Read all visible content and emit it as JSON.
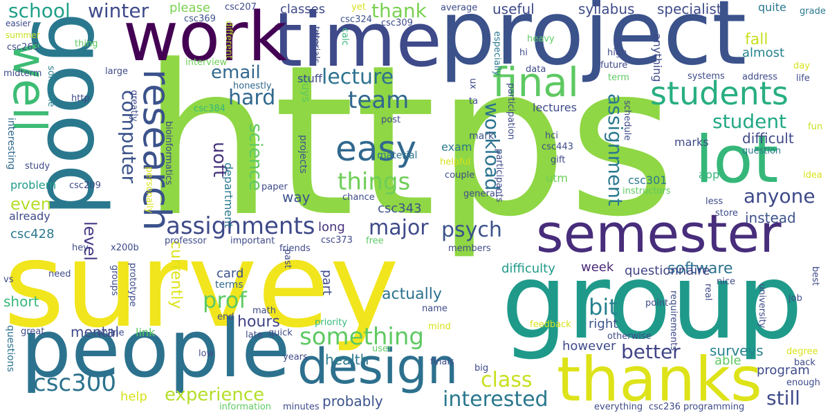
{
  "words": [
    {
      "text": "https",
      "color": "#8fd744"
    },
    {
      "text": "survey",
      "color": "#f1e51d"
    },
    {
      "text": "group",
      "color": "#1f9a8a"
    },
    {
      "text": "project",
      "color": "#3b528b"
    },
    {
      "text": "time",
      "color": "#3e4a89"
    },
    {
      "text": "people",
      "color": "#2c728e"
    },
    {
      "text": "work",
      "color": "#440154"
    },
    {
      "text": "good",
      "color": "#2a788e"
    },
    {
      "text": "thanks",
      "color": "#dde318"
    },
    {
      "text": "semester",
      "color": "#472d7b"
    },
    {
      "text": "design",
      "color": "#2d708e"
    },
    {
      "text": "well",
      "color": "#3dbc74"
    },
    {
      "text": "lot",
      "color": "#35b779"
    },
    {
      "text": "students",
      "color": "#28ae80"
    },
    {
      "text": "research",
      "color": "#3b528b"
    },
    {
      "text": "final",
      "color": "#5ec962"
    },
    {
      "text": "easy",
      "color": "#31688e"
    },
    {
      "text": "csc300",
      "color": "#2c728e"
    },
    {
      "text": "assignments",
      "color": "#3e4a89"
    },
    {
      "text": "something",
      "color": "#5ec962"
    },
    {
      "text": "things",
      "color": "#6ece58"
    },
    {
      "text": "experience",
      "color": "#b5de2b"
    },
    {
      "text": "interested",
      "color": "#2a788e"
    },
    {
      "text": "psych",
      "color": "#3b528b"
    },
    {
      "text": "major",
      "color": "#3e4a89"
    },
    {
      "text": "team",
      "color": "#31688e"
    },
    {
      "text": "lecture",
      "color": "#2c728e"
    },
    {
      "text": "hard",
      "color": "#31688e"
    },
    {
      "text": "class",
      "color": "#c8e020"
    },
    {
      "text": "prof",
      "color": "#5ec962"
    },
    {
      "text": "bit",
      "color": "#26828e"
    },
    {
      "text": "better",
      "color": "#414487"
    },
    {
      "text": "still",
      "color": "#3e4a89"
    },
    {
      "text": "anyone",
      "color": "#3e4a89"
    },
    {
      "text": "student",
      "color": "#22a884"
    },
    {
      "text": "workload",
      "color": "#2c728e"
    },
    {
      "text": "assignment",
      "color": "#2a788e"
    },
    {
      "text": "computer",
      "color": "#3b528b"
    },
    {
      "text": "uoft",
      "color": "#46327e"
    },
    {
      "text": "science",
      "color": "#5ec962"
    },
    {
      "text": "email",
      "color": "#31688e"
    },
    {
      "text": "school",
      "color": "#1fa088"
    },
    {
      "text": "winter",
      "color": "#3e4a89"
    },
    {
      "text": "thank",
      "color": "#7ad151"
    },
    {
      "text": "level",
      "color": "#443983"
    },
    {
      "text": "even",
      "color": "#b5de2b"
    },
    {
      "text": "hours",
      "color": "#414487"
    },
    {
      "text": "health",
      "color": "#2a788e"
    },
    {
      "text": "software",
      "color": "#2c728e"
    },
    {
      "text": "actually",
      "color": "#2c728e"
    },
    {
      "text": "probably",
      "color": "#3b528b"
    },
    {
      "text": "currently",
      "color": "#dde318"
    },
    {
      "text": "short",
      "color": "#35b779"
    },
    {
      "text": "mental",
      "color": "#3e4a89"
    },
    {
      "text": "surveys",
      "color": "#26828e"
    },
    {
      "text": "program",
      "color": "#3e4a89"
    },
    {
      "text": "help",
      "color": "#d8e219"
    },
    {
      "text": "difficulty",
      "color": "#1f9a8a"
    },
    {
      "text": "questionnaire",
      "color": "#414487"
    },
    {
      "text": "week",
      "color": "#482878"
    },
    {
      "text": "right",
      "color": "#3b528b"
    },
    {
      "text": "however",
      "color": "#3e4a89"
    },
    {
      "text": "able",
      "color": "#5ec962"
    },
    {
      "text": "instead",
      "color": "#3b528b"
    },
    {
      "text": "difficult",
      "color": "#3e4a89"
    },
    {
      "text": "fall",
      "color": "#c8e020"
    },
    {
      "text": "almost",
      "color": "#26828e"
    },
    {
      "text": "specialist",
      "color": "#3e4a89"
    },
    {
      "text": "syllabus",
      "color": "#3e4a89"
    },
    {
      "text": "useful",
      "color": "#3e4a89"
    },
    {
      "text": "classes",
      "color": "#3e4a89"
    },
    {
      "text": "please",
      "color": "#7ad151"
    },
    {
      "text": "way",
      "color": "#3b528b"
    },
    {
      "text": "card",
      "color": "#3b528b"
    },
    {
      "text": "long",
      "color": "#46327e"
    },
    {
      "text": "part",
      "color": "#3e4a89"
    },
    {
      "text": "terms",
      "color": "#31688e"
    },
    {
      "text": "exam",
      "color": "#2a788e"
    },
    {
      "text": "mark",
      "color": "#3b528b"
    },
    {
      "text": "marks",
      "color": "#3e4a89"
    },
    {
      "text": "lectures",
      "color": "#3e4a89"
    },
    {
      "text": "utm",
      "color": "#6ece58"
    },
    {
      "text": "problem",
      "color": "#1f9a8a"
    },
    {
      "text": "csc428",
      "color": "#2a788e"
    },
    {
      "text": "already",
      "color": "#3e4a89"
    },
    {
      "text": "department",
      "color": "#2a788e"
    },
    {
      "text": "csc343",
      "color": "#3b528b"
    },
    {
      "text": "csc301",
      "color": "#2a788e"
    },
    {
      "text": "anything",
      "color": "#3e4a89"
    },
    {
      "text": "link",
      "color": "#5ec962"
    },
    {
      "text": "guys",
      "color": "#5ec962"
    },
    {
      "text": "stuff",
      "color": "#3e4a89"
    },
    {
      "text": "material",
      "color": "#2c728e"
    },
    {
      "text": "quite",
      "color": "#2a788e"
    },
    {
      "text": "app",
      "color": "#35b779"
    },
    {
      "text": "interesting",
      "color": "#31688e"
    },
    {
      "text": "questions",
      "color": "#2c728e"
    },
    {
      "text": "projects",
      "color": "#3b528b"
    },
    {
      "text": "yet",
      "color": "#d8e219"
    },
    {
      "text": "average",
      "color": "#3e4a89"
    },
    {
      "text": "grade",
      "color": "#2a788e"
    },
    {
      "text": "csc207",
      "color": "#3e4a89"
    },
    {
      "text": "csc369",
      "color": "#3b528b"
    },
    {
      "text": "csc324",
      "color": "#3b528b"
    },
    {
      "text": "csc309",
      "color": "#3e4a89"
    },
    {
      "text": "csc263",
      "color": "#3e4a89"
    },
    {
      "text": "csc384",
      "color": "#35b779"
    },
    {
      "text": "csc209",
      "color": "#3e4a89"
    },
    {
      "text": "csc373",
      "color": "#3e4a89"
    },
    {
      "text": "csc443",
      "color": "#3e4a89"
    },
    {
      "text": "csc236",
      "color": "#3e4a89"
    },
    {
      "text": "x200b",
      "color": "#3e4a89"
    },
    {
      "text": "easier",
      "color": "#3e4a89"
    },
    {
      "text": "summer",
      "color": "#c8e020"
    },
    {
      "text": "midterm",
      "color": "#3e4a89"
    },
    {
      "text": "someone",
      "color": "#26828e"
    },
    {
      "text": "thing",
      "color": "#5ec962"
    },
    {
      "text": "due",
      "color": "#3e4a89"
    },
    {
      "text": "tutorials",
      "color": "#3e4a89"
    },
    {
      "text": "calc",
      "color": "#35b779"
    },
    {
      "text": "different",
      "color": "#b5de2b"
    },
    {
      "text": "interview",
      "color": "#6ece58"
    },
    {
      "text": "large",
      "color": "#3e4a89"
    },
    {
      "text": "honestly",
      "color": "#31688e"
    },
    {
      "text": "http",
      "color": "#3e4a89"
    },
    {
      "text": "greatly",
      "color": "#3e4a89"
    },
    {
      "text": "bioinformatics",
      "color": "#3e4a89"
    },
    {
      "text": "study",
      "color": "#3e4a89"
    },
    {
      "text": "heavy",
      "color": "#5ec962"
    },
    {
      "text": "hi",
      "color": "#3e4a89"
    },
    {
      "text": "data",
      "color": "#3e4a89"
    },
    {
      "text": "especially",
      "color": "#2a788e"
    },
    {
      "text": "ux",
      "color": "#3e4a89"
    },
    {
      "text": "ta",
      "color": "#3e4a89"
    },
    {
      "text": "participation",
      "color": "#3e4a89"
    },
    {
      "text": "participants",
      "color": "#3e4a89"
    },
    {
      "text": "high",
      "color": "#3e4a89"
    },
    {
      "text": "future",
      "color": "#3e4a89"
    },
    {
      "text": "term",
      "color": "#5ec962"
    },
    {
      "text": "day",
      "color": "#d8e219"
    },
    {
      "text": "systems",
      "color": "#3e4a89"
    },
    {
      "text": "address",
      "color": "#3e4a89"
    },
    {
      "text": "life",
      "color": "#3e4a89"
    },
    {
      "text": "schedule",
      "color": "#3e4a89"
    },
    {
      "text": "fun",
      "color": "#c8e020"
    },
    {
      "text": "question",
      "color": "#2a788e"
    },
    {
      "text": "idea",
      "color": "#d8e219"
    },
    {
      "text": "post",
      "color": "#3e4a89"
    },
    {
      "text": "hci",
      "color": "#3e4a89"
    },
    {
      "text": "gift",
      "color": "#3e4a89"
    },
    {
      "text": "helpful",
      "color": "#d8e219"
    },
    {
      "text": "couple",
      "color": "#3e4a89"
    },
    {
      "text": "general",
      "color": "#3e4a89"
    },
    {
      "text": "instructors",
      "color": "#5ec962"
    },
    {
      "text": "less",
      "color": "#3e4a89"
    },
    {
      "text": "store",
      "color": "#3e4a89"
    },
    {
      "text": "chance",
      "color": "#3e4a89"
    },
    {
      "text": "paper",
      "color": "#3e4a89"
    },
    {
      "text": "personally",
      "color": "#d8e219"
    },
    {
      "text": "professor",
      "color": "#3e4a89"
    },
    {
      "text": "important",
      "color": "#3e4a89"
    },
    {
      "text": "friends",
      "color": "#3e4a89"
    },
    {
      "text": "free",
      "color": "#5ec962"
    },
    {
      "text": "members",
      "color": "#3e4a89"
    },
    {
      "text": "hey",
      "color": "#3e4a89"
    },
    {
      "text": "groups",
      "color": "#3e4a89"
    },
    {
      "text": "prototype",
      "color": "#3e4a89"
    },
    {
      "text": "past",
      "color": "#3e4a89"
    },
    {
      "text": "need",
      "color": "#3e4a89"
    },
    {
      "text": "vs",
      "color": "#3e4a89"
    },
    {
      "text": "math",
      "color": "#3e4a89"
    },
    {
      "text": "end",
      "color": "#3e4a89"
    },
    {
      "text": "great",
      "color": "#3e4a89"
    },
    {
      "text": "online",
      "color": "#3e4a89"
    },
    {
      "text": "late",
      "color": "#3e4a89"
    },
    {
      "text": "quick",
      "color": "#3e4a89"
    },
    {
      "text": "priority",
      "color": "#35b779"
    },
    {
      "text": "name",
      "color": "#3e4a89"
    },
    {
      "text": "mind",
      "color": "#d8e219"
    },
    {
      "text": "feedback",
      "color": "#d8e219"
    },
    {
      "text": "otherwise",
      "color": "#3e4a89"
    },
    {
      "text": "point",
      "color": "#3e4a89"
    },
    {
      "text": "nice",
      "color": "#3e4a89"
    },
    {
      "text": "requirements",
      "color": "#3e4a89"
    },
    {
      "text": "real",
      "color": "#3e4a89"
    },
    {
      "text": "university",
      "color": "#3e4a89"
    },
    {
      "text": "best",
      "color": "#3e4a89"
    },
    {
      "text": "job",
      "color": "#3e4a89"
    },
    {
      "text": "degree",
      "color": "#d8e219"
    },
    {
      "text": "back",
      "color": "#3e4a89"
    },
    {
      "text": "enough",
      "color": "#3e4a89"
    },
    {
      "text": "low",
      "color": "#3e4a89"
    },
    {
      "text": "years",
      "color": "#3e4a89"
    },
    {
      "text": "user",
      "color": "#5ec962"
    },
    {
      "text": "finals",
      "color": "#3e4a89"
    },
    {
      "text": "big",
      "color": "#3e4a89"
    },
    {
      "text": "information",
      "color": "#5ec962"
    },
    {
      "text": "minutes",
      "color": "#3e4a89"
    },
    {
      "text": "everything",
      "color": "#3e4a89"
    },
    {
      "text": "programming",
      "color": "#3e4a89"
    }
  ]
}
